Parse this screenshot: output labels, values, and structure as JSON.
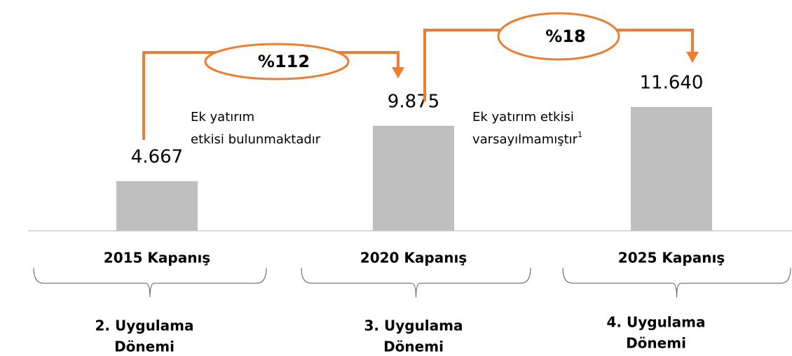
{
  "chart_data": {
    "type": "bar",
    "categories": [
      "2015 Kapanış",
      "2020 Kapanış",
      "2025 Kapanış"
    ],
    "values": [
      4667,
      9875,
      11640
    ],
    "value_labels": [
      "4.667",
      "9.875",
      "11.640"
    ],
    "color": "#bfbfbf",
    "accent_color": "#ed7d31",
    "growth_labels": [
      "%112",
      "%18"
    ],
    "notes": [
      {
        "lines": [
          "Ek yatırım",
          "etkisi bulunmaktadır"
        ]
      },
      {
        "lines": [
          "Ek yatırım etkisi",
          "varsayılmamıştır"
        ],
        "footnote": "1"
      }
    ],
    "periods": [
      [
        "2. Uygulama",
        "Dönemi"
      ],
      [
        "3. Uygulama",
        "Dönemi"
      ],
      [
        "4. Uygulama",
        "Dönemi"
      ]
    ]
  }
}
